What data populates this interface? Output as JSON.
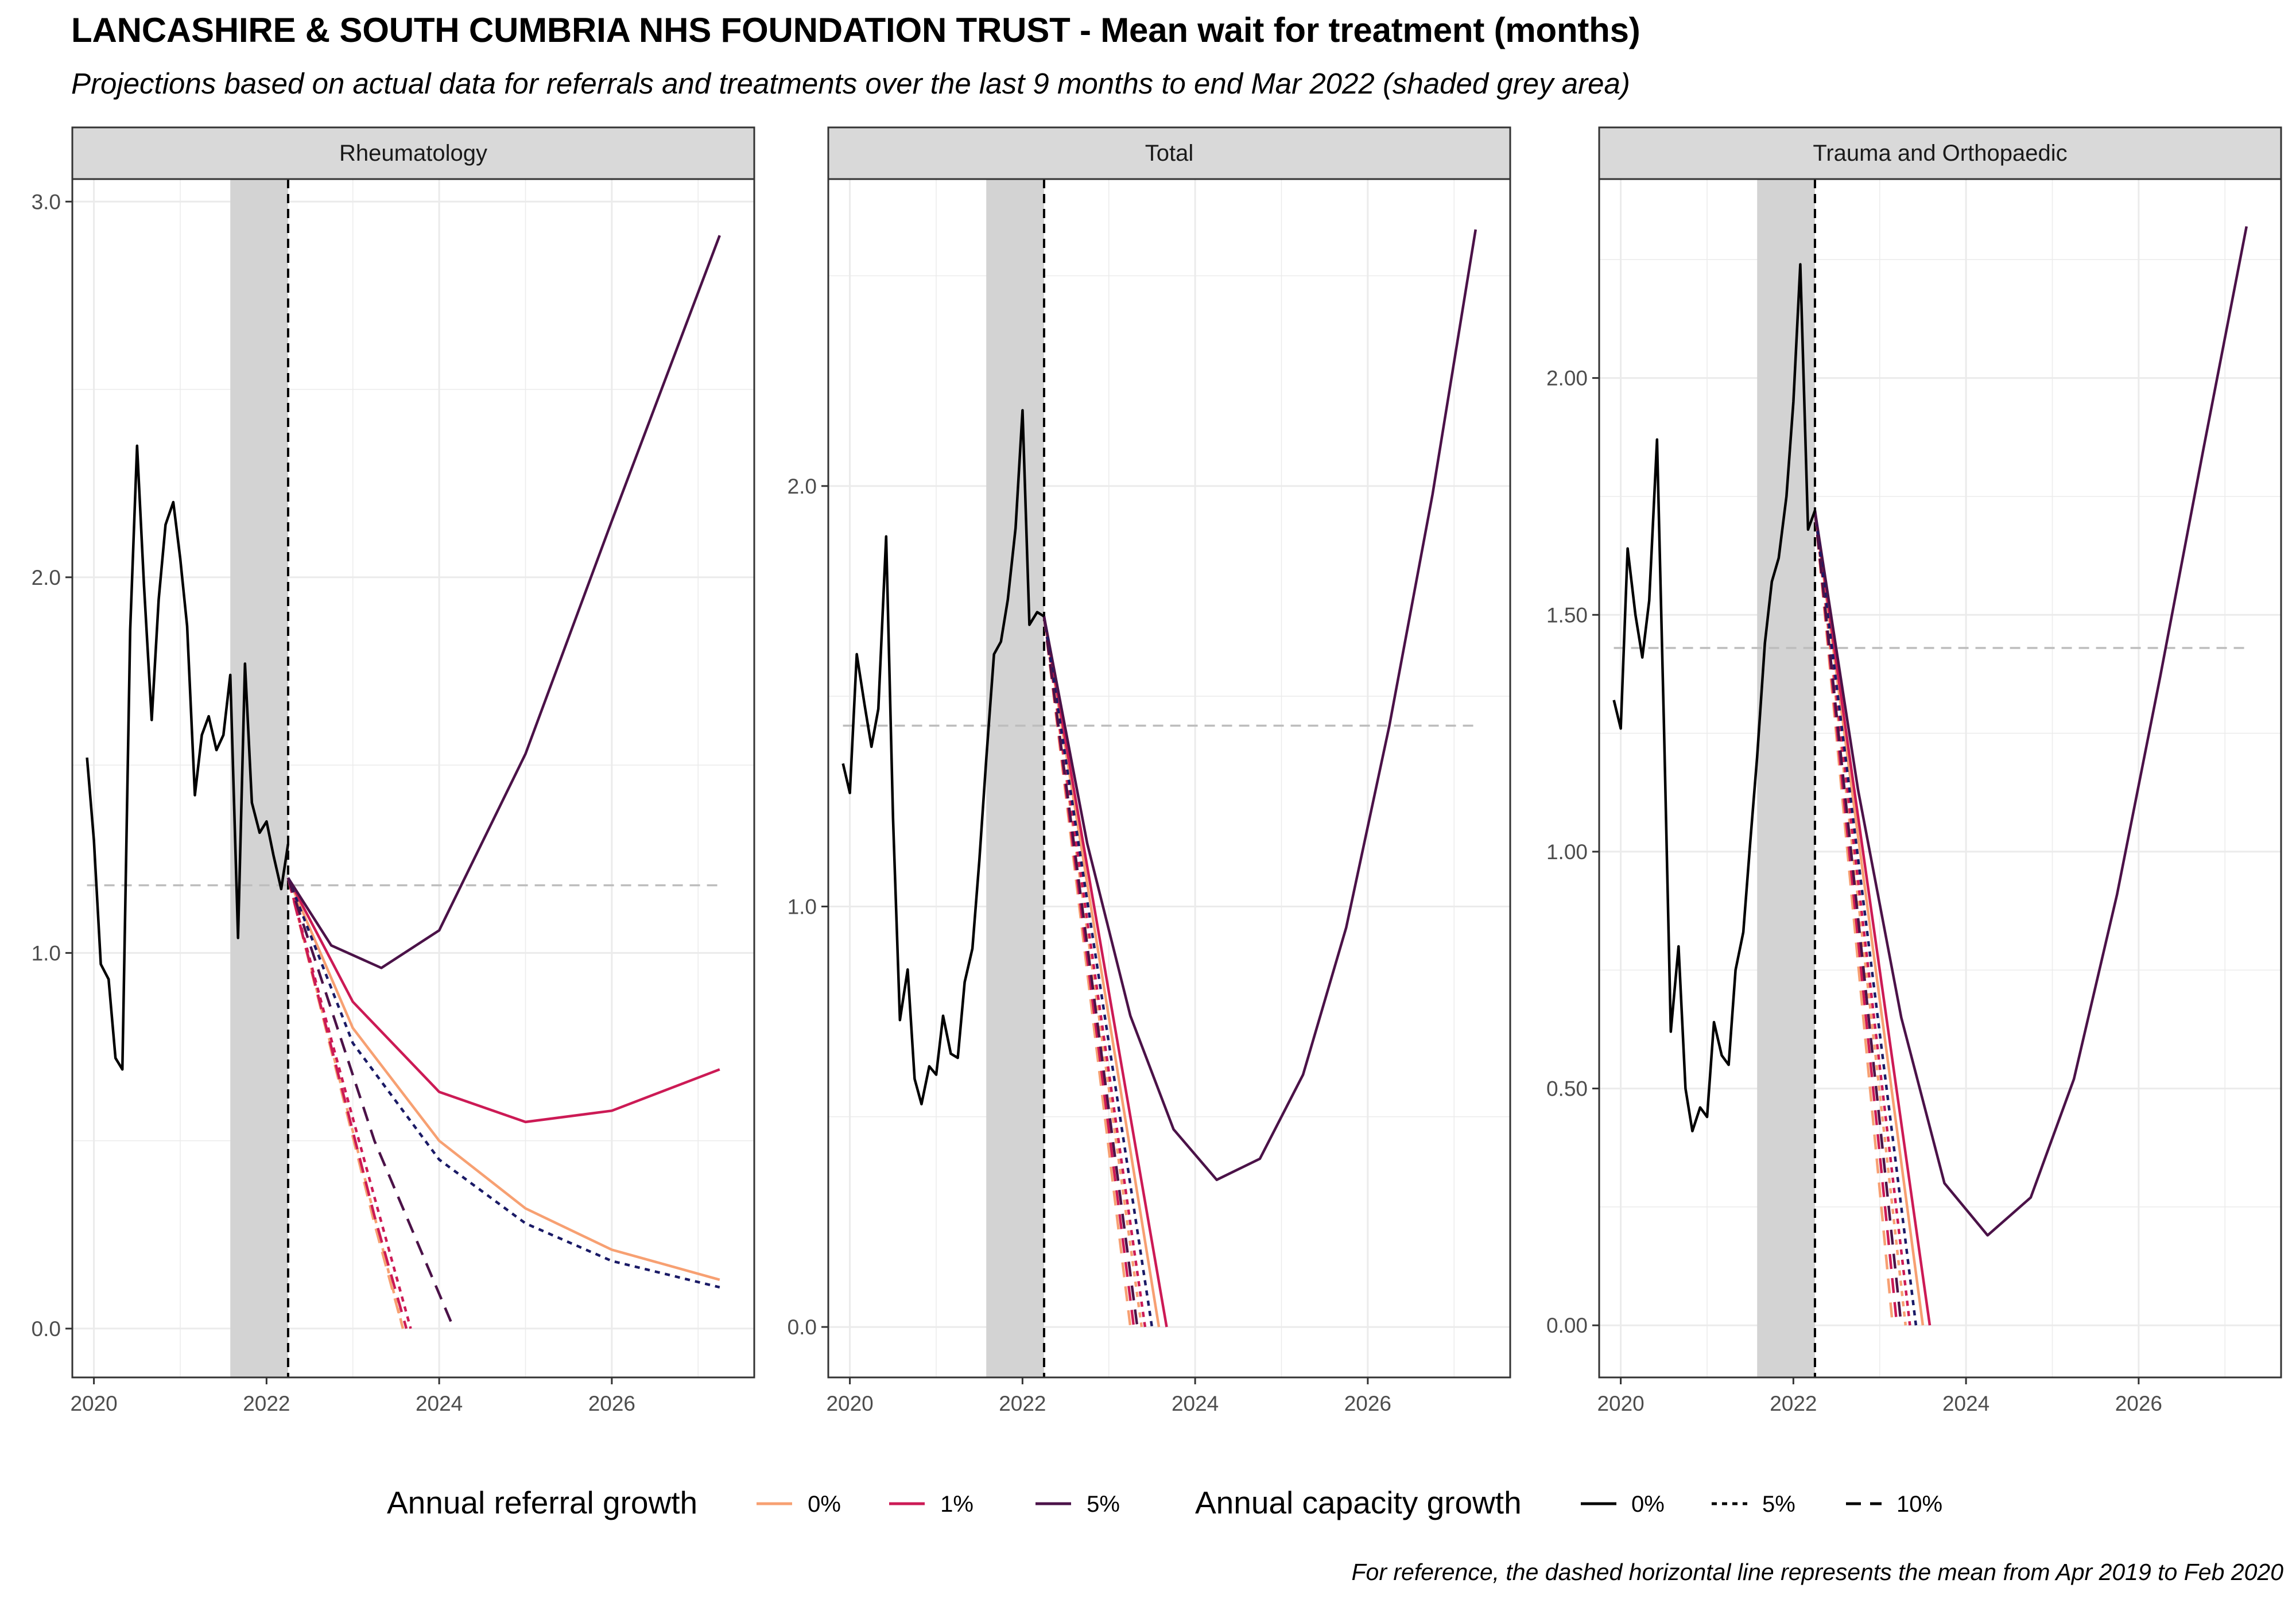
{
  "title": "LANCASHIRE & SOUTH CUMBRIA NHS FOUNDATION TRUST - Mean wait for treatment (months)",
  "subtitle": "Projections based on actual data for referrals and treatments over the last 9 months to end Mar 2022 (shaded grey area)",
  "caption": "For reference, the dashed horizontal line represents the mean from Apr 2019 to Feb 2020",
  "legend": {
    "referral_title": "Annual referral growth",
    "referral_items": [
      {
        "label": "0%",
        "color": "#f7a072"
      },
      {
        "label": "1%",
        "color": "#cc1a55"
      },
      {
        "label": "5%",
        "color": "#4b1248"
      }
    ],
    "capacity_title": "Annual capacity growth",
    "capacity_items": [
      {
        "label": "0%",
        "linetype": "solid"
      },
      {
        "label": "5%",
        "linetype": "dotted"
      },
      {
        "label": "10%",
        "linetype": "dashed"
      }
    ]
  },
  "colors": {
    "actual": "#000000",
    "reference_line": "#bdbdbd",
    "shade": "#d3d3d3",
    "strip_fill": "#d9d9d9",
    "grid": "#ebebeb"
  },
  "chart_data": [
    {
      "type": "line",
      "title": "Rheumatology",
      "xlabel": "",
      "ylabel": "",
      "xlim": [
        2019.75,
        2027.65
      ],
      "ylim": [
        -0.13,
        3.06
      ],
      "x_ticks": [
        2020,
        2022,
        2024,
        2026
      ],
      "x_tick_labels": [
        "2020",
        "2022",
        "2024",
        "2026"
      ],
      "y_ticks": [
        0,
        1,
        2,
        3
      ],
      "y_tick_labels": [
        "0.0",
        "1.0",
        "2.0",
        "3.0"
      ],
      "shaded_range": [
        2021.58,
        2022.25
      ],
      "projection_start": 2022.25,
      "reference_mean": 1.18,
      "reference_range": [
        2019.92,
        2027.25
      ],
      "actual": {
        "x": [
          2019.92,
          2020.0,
          2020.08,
          2020.17,
          2020.25,
          2020.33,
          2020.42,
          2020.5,
          2020.58,
          2020.67,
          2020.75,
          2020.83,
          2020.92,
          2021.0,
          2021.08,
          2021.17,
          2021.25,
          2021.33,
          2021.42,
          2021.5,
          2021.58,
          2021.67,
          2021.75,
          2021.83,
          2021.92,
          2022.0,
          2022.08,
          2022.17,
          2022.25
        ],
        "y": [
          1.52,
          1.3,
          0.97,
          0.93,
          0.72,
          0.69,
          1.86,
          2.35,
          1.98,
          1.62,
          1.94,
          2.14,
          2.2,
          2.05,
          1.87,
          1.42,
          1.58,
          1.63,
          1.54,
          1.58,
          1.74,
          1.04,
          1.77,
          1.4,
          1.32,
          1.35,
          1.26,
          1.17,
          1.29
        ]
      },
      "projections": [
        {
          "referral": "0%",
          "capacity": "0%",
          "x": [
            2022.25,
            2023.0,
            2024.0,
            2025.0,
            2026.0,
            2027.25
          ],
          "y": [
            1.2,
            0.8,
            0.5,
            0.32,
            0.21,
            0.13
          ]
        },
        {
          "referral": "0%",
          "capacity": "5%",
          "x": [
            2022.25,
            2022.75,
            2023.25,
            2023.58
          ],
          "y": [
            1.2,
            0.75,
            0.3,
            0.0
          ]
        },
        {
          "referral": "0%",
          "capacity": "10%",
          "x": [
            2022.25,
            2022.75,
            2023.25,
            2023.58
          ],
          "y": [
            1.2,
            0.74,
            0.28,
            0.0
          ]
        },
        {
          "referral": "1%",
          "capacity": "0%",
          "x": [
            2022.25,
            2023.0,
            2024.0,
            2025.0,
            2026.0,
            2027.25
          ],
          "y": [
            1.2,
            0.87,
            0.63,
            0.55,
            0.58,
            0.69
          ]
        },
        {
          "referral": "1%",
          "capacity": "5%",
          "x": [
            2022.25,
            2022.75,
            2023.25,
            2023.67
          ],
          "y": [
            1.2,
            0.77,
            0.35,
            0.0
          ]
        },
        {
          "referral": "1%",
          "capacity": "10%",
          "x": [
            2022.25,
            2022.75,
            2023.25,
            2023.62
          ],
          "y": [
            1.2,
            0.75,
            0.3,
            0.0
          ]
        },
        {
          "referral": "5%",
          "capacity": "0%",
          "x": [
            2022.25,
            2022.75,
            2023.33,
            2024.0,
            2025.0,
            2026.0,
            2027.25
          ],
          "y": [
            1.2,
            1.02,
            0.96,
            1.06,
            1.53,
            2.15,
            2.91
          ]
        },
        {
          "referral": "5%",
          "capacity": "5%",
          "x": [
            2022.25,
            2023.0,
            2024.0,
            2025.0,
            2026.0,
            2027.25
          ],
          "y": [
            1.2,
            0.76,
            0.45,
            0.28,
            0.18,
            0.11
          ]
        },
        {
          "referral": "5%",
          "capacity": "10%",
          "x": [
            2022.25,
            2022.75,
            2023.25,
            2024.17
          ],
          "y": [
            1.2,
            0.85,
            0.5,
            0.0
          ]
        }
      ]
    },
    {
      "type": "line",
      "title": "Total",
      "xlabel": "",
      "ylabel": "",
      "xlim": [
        2019.75,
        2027.65
      ],
      "ylim": [
        -0.12,
        2.73
      ],
      "x_ticks": [
        2020,
        2022,
        2024,
        2026
      ],
      "x_tick_labels": [
        "2020",
        "2022",
        "2024",
        "2026"
      ],
      "y_ticks": [
        0,
        1,
        2
      ],
      "y_tick_labels": [
        "0.0",
        "1.0",
        "2.0"
      ],
      "shaded_range": [
        2021.58,
        2022.25
      ],
      "projection_start": 2022.25,
      "reference_mean": 1.43,
      "reference_range": [
        2019.92,
        2027.25
      ],
      "actual": {
        "x": [
          2019.92,
          2020.0,
          2020.08,
          2020.17,
          2020.25,
          2020.33,
          2020.42,
          2020.5,
          2020.58,
          2020.67,
          2020.75,
          2020.83,
          2020.92,
          2021.0,
          2021.08,
          2021.17,
          2021.25,
          2021.33,
          2021.42,
          2021.5,
          2021.58,
          2021.67,
          2021.75,
          2021.83,
          2021.92,
          2022.0,
          2022.08,
          2022.17,
          2022.25
        ],
        "y": [
          1.34,
          1.27,
          1.6,
          1.48,
          1.38,
          1.47,
          1.88,
          1.21,
          0.73,
          0.85,
          0.59,
          0.53,
          0.62,
          0.6,
          0.74,
          0.65,
          0.64,
          0.82,
          0.9,
          1.11,
          1.35,
          1.6,
          1.63,
          1.73,
          1.9,
          2.18,
          1.67,
          1.7,
          1.69
        ]
      },
      "projections": [
        {
          "referral": "0%",
          "capacity": "0%",
          "x": [
            2022.25,
            2023.58
          ],
          "y": [
            1.69,
            0.0
          ]
        },
        {
          "referral": "0%",
          "capacity": "5%",
          "x": [
            2022.25,
            2023.38
          ],
          "y": [
            1.69,
            0.0
          ]
        },
        {
          "referral": "0%",
          "capacity": "10%",
          "x": [
            2022.25,
            2023.25
          ],
          "y": [
            1.69,
            0.0
          ]
        },
        {
          "referral": "1%",
          "capacity": "0%",
          "x": [
            2022.25,
            2023.67
          ],
          "y": [
            1.69,
            0.0
          ]
        },
        {
          "referral": "1%",
          "capacity": "5%",
          "x": [
            2022.25,
            2023.42
          ],
          "y": [
            1.69,
            0.0
          ]
        },
        {
          "referral": "1%",
          "capacity": "10%",
          "x": [
            2022.25,
            2023.29
          ],
          "y": [
            1.69,
            0.0
          ]
        },
        {
          "referral": "5%",
          "capacity": "0%",
          "x": [
            2022.25,
            2022.75,
            2023.25,
            2023.75,
            2024.25,
            2024.75,
            2025.25,
            2025.75,
            2026.25,
            2026.75,
            2027.25
          ],
          "y": [
            1.69,
            1.15,
            0.74,
            0.47,
            0.35,
            0.4,
            0.6,
            0.95,
            1.43,
            1.98,
            2.61
          ]
        },
        {
          "referral": "5%",
          "capacity": "5%",
          "x": [
            2022.25,
            2023.5
          ],
          "y": [
            1.69,
            0.0
          ]
        },
        {
          "referral": "5%",
          "capacity": "10%",
          "x": [
            2022.25,
            2023.33
          ],
          "y": [
            1.69,
            0.0
          ]
        }
      ]
    },
    {
      "type": "line",
      "title": "Trauma and Orthopaedic",
      "xlabel": "",
      "ylabel": "",
      "xlim": [
        2019.75,
        2027.65
      ],
      "ylim": [
        -0.11,
        2.42
      ],
      "x_ticks": [
        2020,
        2022,
        2024,
        2026
      ],
      "x_tick_labels": [
        "2020",
        "2022",
        "2024",
        "2026"
      ],
      "y_ticks": [
        0,
        0.5,
        1,
        1.5,
        2
      ],
      "y_tick_labels": [
        "0.00",
        "0.50",
        "1.00",
        "1.50",
        "2.00"
      ],
      "shaded_range": [
        2021.58,
        2022.25
      ],
      "projection_start": 2022.25,
      "reference_mean": 1.43,
      "reference_range": [
        2019.92,
        2027.25
      ],
      "actual": {
        "x": [
          2019.92,
          2020.0,
          2020.08,
          2020.17,
          2020.25,
          2020.33,
          2020.42,
          2020.5,
          2020.58,
          2020.67,
          2020.75,
          2020.83,
          2020.92,
          2021.0,
          2021.08,
          2021.17,
          2021.25,
          2021.33,
          2021.42,
          2021.5,
          2021.58,
          2021.67,
          2021.75,
          2021.83,
          2021.92,
          2022.0,
          2022.08,
          2022.17,
          2022.25
        ],
        "y": [
          1.32,
          1.26,
          1.64,
          1.5,
          1.41,
          1.53,
          1.87,
          1.27,
          0.62,
          0.8,
          0.5,
          0.41,
          0.46,
          0.44,
          0.64,
          0.57,
          0.55,
          0.75,
          0.83,
          1.02,
          1.2,
          1.44,
          1.57,
          1.62,
          1.75,
          1.95,
          2.24,
          1.68,
          1.72
        ]
      },
      "projections": [
        {
          "referral": "0%",
          "capacity": "0%",
          "x": [
            2022.25,
            2023.5
          ],
          "y": [
            1.72,
            0.0
          ]
        },
        {
          "referral": "0%",
          "capacity": "5%",
          "x": [
            2022.25,
            2023.3
          ],
          "y": [
            1.72,
            0.0
          ]
        },
        {
          "referral": "0%",
          "capacity": "10%",
          "x": [
            2022.25,
            2023.15
          ],
          "y": [
            1.72,
            0.0
          ]
        },
        {
          "referral": "1%",
          "capacity": "0%",
          "x": [
            2022.25,
            2023.58
          ],
          "y": [
            1.72,
            0.0
          ]
        },
        {
          "referral": "1%",
          "capacity": "5%",
          "x": [
            2022.25,
            2023.35
          ],
          "y": [
            1.72,
            0.0
          ]
        },
        {
          "referral": "1%",
          "capacity": "10%",
          "x": [
            2022.25,
            2023.2
          ],
          "y": [
            1.72,
            0.0
          ]
        },
        {
          "referral": "5%",
          "capacity": "0%",
          "x": [
            2022.25,
            2022.75,
            2023.25,
            2023.75,
            2024.25,
            2024.75,
            2025.25,
            2025.75,
            2026.25,
            2026.75,
            2027.25
          ],
          "y": [
            1.72,
            1.13,
            0.65,
            0.3,
            0.19,
            0.27,
            0.52,
            0.91,
            1.37,
            1.85,
            2.32
          ]
        },
        {
          "referral": "5%",
          "capacity": "5%",
          "x": [
            2022.25,
            2023.42
          ],
          "y": [
            1.72,
            0.0
          ]
        },
        {
          "referral": "5%",
          "capacity": "10%",
          "x": [
            2022.25,
            2023.25
          ],
          "y": [
            1.72,
            0.0
          ]
        }
      ]
    }
  ]
}
